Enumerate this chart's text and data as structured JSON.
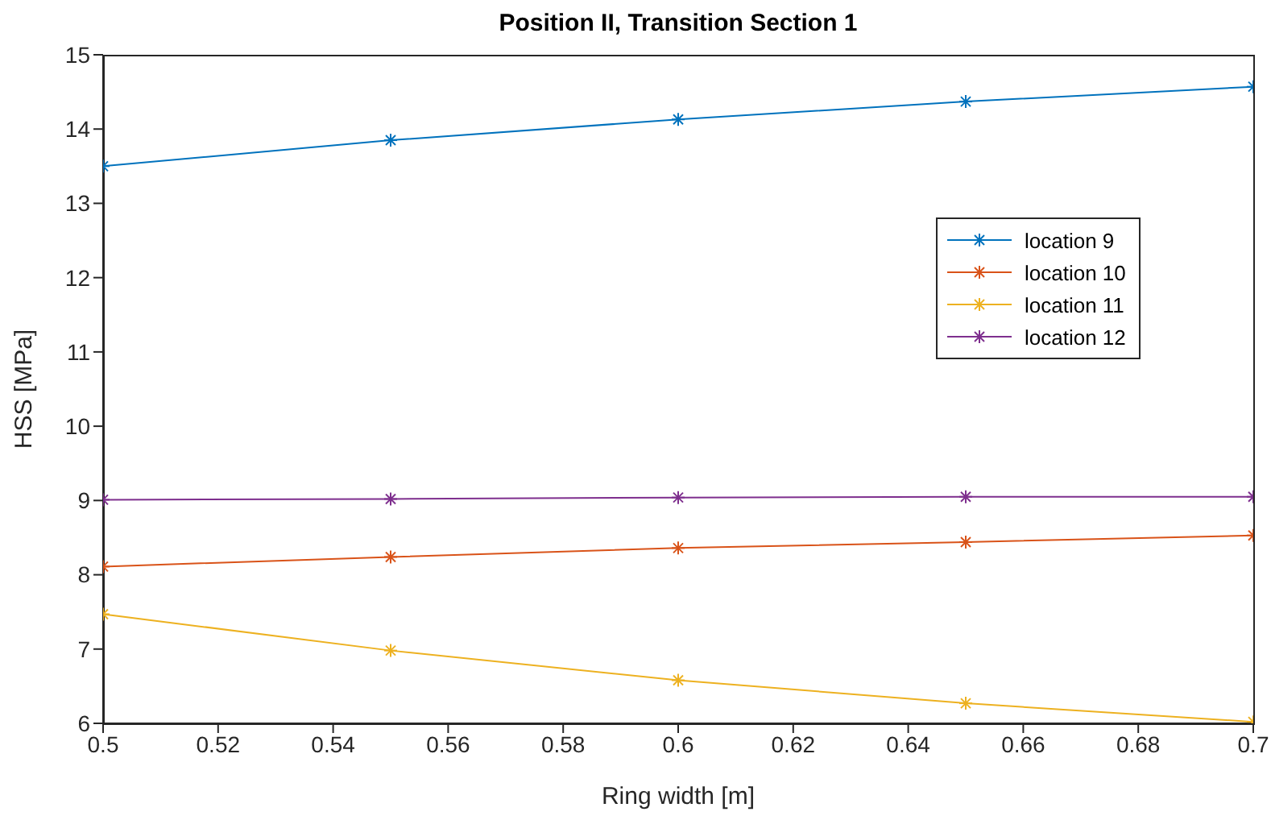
{
  "chart_data": {
    "type": "line",
    "title": "Position II, Transition Section 1",
    "xlabel": "Ring width [m]",
    "ylabel": "HSS [MPa]",
    "x": [
      0.5,
      0.55,
      0.6,
      0.65,
      0.7
    ],
    "series": [
      {
        "name": "location 9",
        "color": "#0072bd",
        "values": [
          13.5,
          13.85,
          14.13,
          14.37,
          14.57
        ]
      },
      {
        "name": "location 10",
        "color": "#d95319",
        "values": [
          8.11,
          8.24,
          8.36,
          8.44,
          8.53
        ]
      },
      {
        "name": "location 11",
        "color": "#edb120",
        "values": [
          7.47,
          6.98,
          6.58,
          6.27,
          6.02
        ]
      },
      {
        "name": "location 12",
        "color": "#7e2f8e",
        "values": [
          9.01,
          9.02,
          9.04,
          9.05,
          9.05
        ]
      }
    ],
    "xlim": [
      0.5,
      0.7
    ],
    "xticks": [
      0.5,
      0.52,
      0.54,
      0.56,
      0.58,
      0.6,
      0.62,
      0.64,
      0.66,
      0.68,
      0.7
    ],
    "ylim": [
      6,
      15
    ],
    "yticks": [
      6,
      7,
      8,
      9,
      10,
      11,
      12,
      13,
      14,
      15
    ],
    "grid": false,
    "legend": "top right",
    "marker": "cross",
    "line_style": "solid"
  }
}
